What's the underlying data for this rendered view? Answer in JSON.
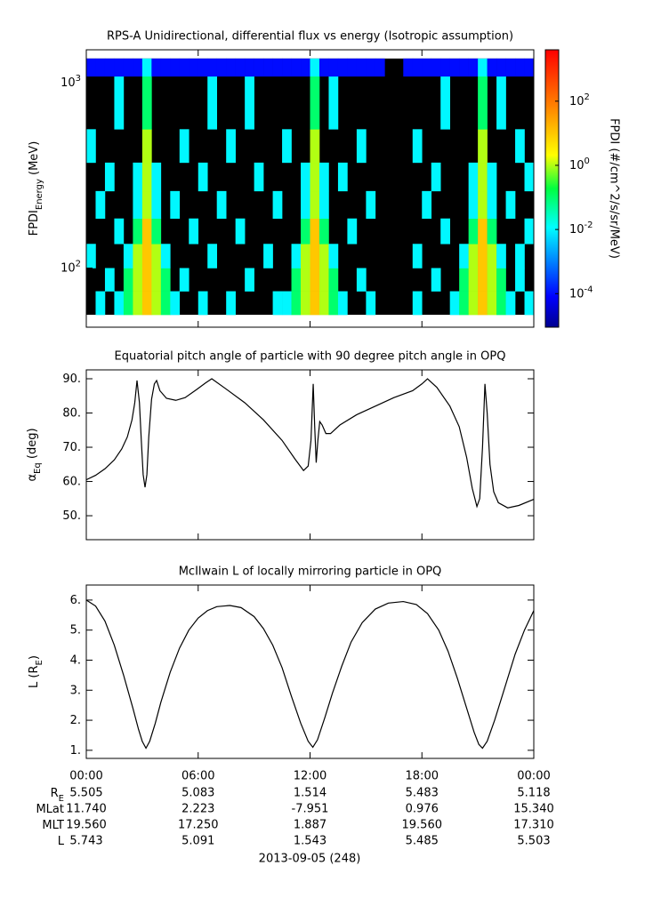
{
  "chart_data": [
    {
      "type": "spectrogram",
      "title": "RPS-A Unidirectional, differential flux vs energy (Isotropic assumption)",
      "ylabel": "FPDI",
      "ylabel_sub": "Energy",
      "ylabel_unit": " (MeV)",
      "time_bins": [
        0,
        0.5,
        1,
        1.5,
        2,
        2.5,
        3,
        3.5,
        4,
        4.5,
        5,
        5.5,
        6,
        6.5,
        7,
        7.5,
        8,
        8.5,
        9,
        9.5,
        10,
        10.5,
        11,
        11.5,
        12,
        12.5,
        13,
        13.5,
        14,
        14.5,
        15,
        15.5,
        16,
        16.5,
        17,
        17.5,
        18,
        18.5,
        19,
        19.5,
        20,
        20.5,
        21,
        21.5,
        22,
        22.5,
        23,
        23.5,
        24
      ],
      "energy_bins": [
        56,
        75,
        100,
        135,
        185,
        260,
        370,
        560,
        1080,
        1346
      ],
      "z": [
        [
          null,
          0.01,
          null,
          0.01,
          0.1,
          1,
          10,
          1,
          0.1,
          0.01,
          null,
          null,
          0.01,
          null,
          null,
          0.01,
          null,
          null,
          null,
          null,
          0.01,
          0.01,
          0.1,
          1,
          10,
          1,
          0.1,
          0.01,
          null,
          null,
          0.01,
          null,
          null,
          null,
          null,
          0.01,
          null,
          null,
          null,
          0.01,
          0.1,
          1,
          10,
          1,
          0.1,
          0.01,
          null,
          0.01
        ],
        [
          null,
          null,
          0.01,
          null,
          0.1,
          1,
          10,
          1,
          0.1,
          null,
          0.01,
          null,
          null,
          null,
          null,
          null,
          null,
          0.01,
          null,
          null,
          null,
          null,
          0.1,
          1,
          10,
          1,
          0.1,
          null,
          null,
          0.01,
          null,
          null,
          null,
          null,
          null,
          null,
          null,
          0.01,
          null,
          null,
          0.1,
          1,
          10,
          1,
          0.1,
          null,
          0.01,
          null
        ],
        [
          0.01,
          null,
          null,
          null,
          0.01,
          1,
          10,
          1,
          0.01,
          null,
          null,
          null,
          null,
          0.01,
          null,
          null,
          null,
          null,
          null,
          0.01,
          null,
          null,
          0.01,
          1,
          10,
          1,
          0.01,
          null,
          null,
          null,
          null,
          null,
          null,
          null,
          null,
          0.01,
          null,
          null,
          null,
          null,
          0.01,
          1,
          10,
          1,
          0.01,
          null,
          0.01,
          null
        ],
        [
          null,
          null,
          null,
          0.01,
          null,
          0.1,
          10,
          0.1,
          null,
          null,
          null,
          0.01,
          null,
          null,
          null,
          null,
          0.01,
          null,
          null,
          null,
          null,
          null,
          null,
          0.1,
          10,
          0.1,
          null,
          null,
          0.01,
          null,
          null,
          null,
          null,
          null,
          null,
          null,
          null,
          null,
          0.01,
          null,
          null,
          0.1,
          10,
          0.1,
          null,
          null,
          null,
          0.01
        ],
        [
          null,
          0.01,
          null,
          null,
          null,
          0.01,
          1,
          0.01,
          null,
          0.01,
          null,
          null,
          null,
          null,
          0.01,
          null,
          null,
          null,
          null,
          null,
          0.01,
          null,
          null,
          0.01,
          1,
          0.01,
          null,
          null,
          null,
          null,
          0.01,
          null,
          null,
          null,
          null,
          null,
          0.01,
          null,
          null,
          null,
          null,
          0.01,
          1,
          0.01,
          null,
          0.01,
          null,
          null
        ],
        [
          null,
          null,
          0.01,
          null,
          null,
          0.01,
          1,
          0.01,
          null,
          null,
          null,
          null,
          0.01,
          null,
          null,
          null,
          null,
          null,
          0.01,
          null,
          null,
          null,
          null,
          0.01,
          1,
          0.01,
          null,
          0.01,
          null,
          null,
          null,
          null,
          null,
          null,
          null,
          null,
          null,
          0.01,
          null,
          null,
          null,
          0.01,
          1,
          0.01,
          null,
          null,
          null,
          0.01
        ],
        [
          0.01,
          null,
          null,
          null,
          null,
          null,
          1,
          null,
          null,
          null,
          0.01,
          null,
          null,
          null,
          null,
          0.01,
          null,
          null,
          null,
          null,
          null,
          0.01,
          null,
          null,
          1,
          null,
          null,
          null,
          null,
          0.01,
          null,
          null,
          null,
          null,
          null,
          0.01,
          null,
          null,
          null,
          null,
          null,
          null,
          1,
          null,
          null,
          null,
          0.01,
          null
        ],
        [
          null,
          null,
          null,
          0.01,
          null,
          null,
          0.1,
          null,
          null,
          null,
          null,
          null,
          null,
          0.01,
          null,
          null,
          null,
          0.01,
          null,
          null,
          null,
          null,
          null,
          null,
          0.1,
          null,
          0.01,
          null,
          null,
          null,
          null,
          null,
          null,
          null,
          null,
          null,
          null,
          null,
          0.01,
          null,
          null,
          null,
          0.1,
          null,
          0.01,
          null,
          null,
          null
        ],
        [
          0.0001,
          0.0001,
          0.0001,
          0.0001,
          0.0001,
          0.0001,
          0.01,
          0.0001,
          0.0001,
          0.0001,
          0.0001,
          0.0001,
          0.0001,
          0.0001,
          0.0001,
          0.0001,
          0.0001,
          0.0001,
          0.0001,
          0.0001,
          0.0001,
          0.0001,
          0.0001,
          0.0001,
          0.01,
          0.0001,
          0.0001,
          0.0001,
          0.0001,
          0.0001,
          0.0001,
          0.0001,
          null,
          null,
          0.0001,
          0.0001,
          0.0001,
          0.0001,
          0.0001,
          0.0001,
          0.0001,
          0.0001,
          0.01,
          0.0001,
          0.0001,
          0.0001,
          0.0001,
          0.0001
        ]
      ],
      "xlim": [
        0,
        24
      ],
      "xticks": [
        0,
        6,
        12,
        18,
        24
      ],
      "ylim": [
        48,
        1500
      ],
      "ylog": true,
      "yticks": [
        {
          "value": 100,
          "label": "10",
          "sup": "2"
        },
        {
          "value": 1000,
          "label": "10",
          "sup": "3"
        }
      ],
      "zlim": [
        9e-06,
        4000
      ],
      "zlog": true,
      "zticks": [
        {
          "value": 0.0001,
          "label": "10",
          "sup": "-4"
        },
        {
          "value": 0.01,
          "label": "10",
          "sup": "-2"
        },
        {
          "value": 1,
          "label": "10",
          "sup": "0"
        },
        {
          "value": 100,
          "label": "10",
          "sup": "2"
        }
      ],
      "zlabel": "FPDI (#/cm^2/s/sr/MeV)",
      "colormap": {
        "positions": [
          0,
          0.11,
          0.36,
          0.5,
          0.62,
          0.8,
          1
        ],
        "colors": [
          "#00008f",
          "#0000ff",
          "#00ffff",
          "#00ff40",
          "#ffff00",
          "#ff8000",
          "#ff0000"
        ]
      },
      "background": "#000000"
    },
    {
      "type": "line",
      "title": "Equatorial pitch angle of particle with 90 degree pitch angle in OPQ",
      "ylabel": "α",
      "ylabel_sub": "Eq",
      "ylabel_unit": " (deg)",
      "x": [
        0,
        0.5,
        1.0,
        1.5,
        1.9,
        2.2,
        2.45,
        2.6,
        2.72,
        2.85,
        2.95,
        3.05,
        3.15,
        3.25,
        3.35,
        3.5,
        3.65,
        3.77,
        3.95,
        4.3,
        4.8,
        5.3,
        5.9,
        6.4,
        6.73,
        7.5,
        8.5,
        9.5,
        10.5,
        11.2,
        11.65,
        11.9,
        12.05,
        12.17,
        12.25,
        12.33,
        12.42,
        12.52,
        12.65,
        12.85,
        13.1,
        13.6,
        14.5,
        15.5,
        16.5,
        17.5,
        18.0,
        18.3,
        18.8,
        19.5,
        20.0,
        20.4,
        20.7,
        20.95,
        21.1,
        21.25,
        21.38,
        21.5,
        21.65,
        21.85,
        22.1,
        22.6,
        23.2,
        24
      ],
      "values": [
        60.5,
        61.8,
        63.7,
        66.3,
        69.5,
        73,
        78,
        83,
        89.5,
        83,
        72,
        62,
        58.3,
        62,
        73,
        84,
        88.5,
        89.5,
        86.5,
        84.3,
        83.7,
        84.5,
        86.8,
        88.8,
        90,
        87,
        83,
        78,
        72,
        66.5,
        63.2,
        64.5,
        72,
        88.5,
        76,
        65.5,
        72,
        77.5,
        76.5,
        74,
        74,
        76.5,
        79.5,
        82,
        84.5,
        86.5,
        88.5,
        90,
        87.5,
        82,
        76,
        67,
        58,
        52.7,
        55,
        70,
        88.5,
        80,
        65,
        57,
        53.8,
        52.3,
        53,
        54.8
      ],
      "color": "#000000",
      "xlim": [
        0,
        24
      ],
      "xticks": [
        0,
        6,
        12,
        18,
        24
      ],
      "ylim": [
        43,
        92.6
      ],
      "yticks": [
        {
          "value": 50,
          "label": "50."
        },
        {
          "value": 60,
          "label": "60."
        },
        {
          "value": 70,
          "label": "70."
        },
        {
          "value": 80,
          "label": "80."
        },
        {
          "value": 90,
          "label": "90."
        }
      ]
    },
    {
      "type": "line",
      "title": "McIlwain L of locally mirroring particle in OPQ",
      "ylabel": "L (R",
      "ylabel_sub": "E",
      "ylabel_unit": ")",
      "x": [
        0,
        0.5,
        1.0,
        1.5,
        2.0,
        2.5,
        2.8,
        3.0,
        3.2,
        3.4,
        3.7,
        4.0,
        4.5,
        5.0,
        5.5,
        6.0,
        6.5,
        7.0,
        7.7,
        8.3,
        9.0,
        9.5,
        10.0,
        10.5,
        11.0,
        11.5,
        11.9,
        12.15,
        12.4,
        12.8,
        13.2,
        13.7,
        14.2,
        14.8,
        15.5,
        16.2,
        17.0,
        17.7,
        18.3,
        18.9,
        19.4,
        19.9,
        20.4,
        20.8,
        21.05,
        21.25,
        21.5,
        21.9,
        22.4,
        23.0,
        23.5,
        24
      ],
      "values": [
        6.0,
        5.8,
        5.3,
        4.5,
        3.5,
        2.4,
        1.7,
        1.3,
        1.07,
        1.3,
        1.9,
        2.6,
        3.6,
        4.4,
        5.0,
        5.4,
        5.65,
        5.78,
        5.82,
        5.75,
        5.45,
        5.05,
        4.5,
        3.75,
        2.8,
        1.9,
        1.3,
        1.1,
        1.35,
        2.1,
        2.9,
        3.8,
        4.6,
        5.25,
        5.7,
        5.9,
        5.95,
        5.85,
        5.55,
        5.0,
        4.3,
        3.4,
        2.4,
        1.6,
        1.2,
        1.07,
        1.3,
        2.0,
        3.0,
        4.2,
        5.0,
        5.65
      ],
      "color": "#000000",
      "xlim": [
        0,
        24
      ],
      "xticks": [
        {
          "value": 0,
          "label": "00:00"
        },
        {
          "value": 6,
          "label": "06:00"
        },
        {
          "value": 12,
          "label": "12:00"
        },
        {
          "value": 18,
          "label": "18:00"
        },
        {
          "value": 24,
          "label": "00:00"
        }
      ],
      "ylim": [
        0.73,
        6.5
      ],
      "yticks": [
        {
          "value": 1,
          "label": "1."
        },
        {
          "value": 2,
          "label": "2."
        },
        {
          "value": 3,
          "label": "3."
        },
        {
          "value": 4,
          "label": "4."
        },
        {
          "value": 5,
          "label": "5."
        },
        {
          "value": 6,
          "label": "6."
        }
      ]
    }
  ],
  "ephemeris": {
    "rows": [
      {
        "label": "R",
        "label_sub": "E",
        "values": [
          "5.505",
          "5.083",
          "1.514",
          "5.483",
          "5.118"
        ]
      },
      {
        "label": "MLat",
        "values": [
          "11.740",
          "2.223",
          "-7.951",
          "0.976",
          "15.340"
        ]
      },
      {
        "label": "MLT",
        "values": [
          "19.560",
          "17.250",
          "1.887",
          "19.560",
          "17.310"
        ]
      },
      {
        "label": "L",
        "values": [
          "5.743",
          "5.091",
          "1.543",
          "5.485",
          "5.503"
        ]
      }
    ]
  },
  "date_label": "2013-09-05 (248)"
}
